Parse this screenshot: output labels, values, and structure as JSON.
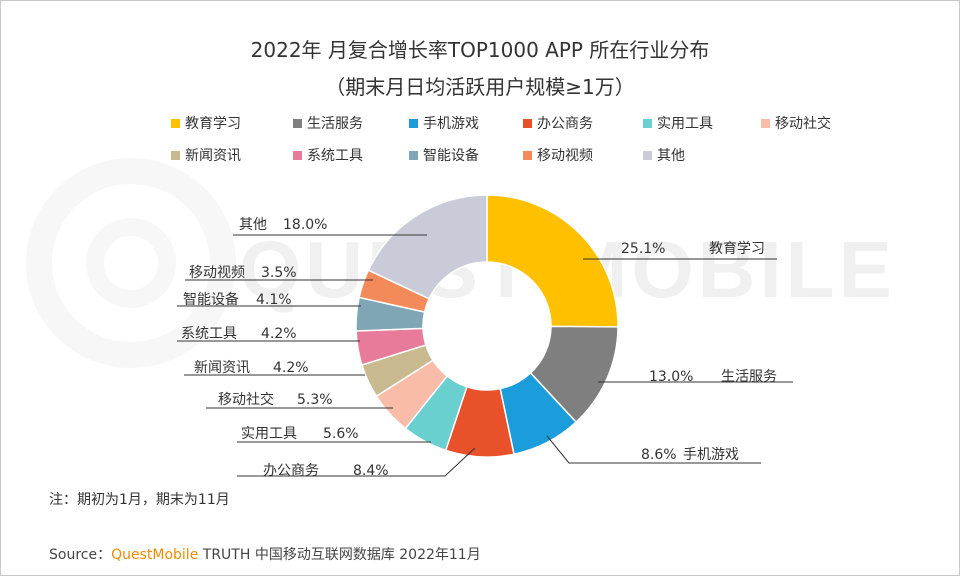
{
  "title_line1": "2022年 月复合增长率TOP1000 APP 所在行业分布",
  "title_line2": "（期末月日均活跃用户规模≥1万）",
  "note": "注：期初为1月，期末为11月",
  "source": {
    "label": "Source：",
    "brand": "QuestMobile",
    "rest": " TRUTH 中国移动互联网数据库 2022年11月"
  },
  "watermark_text": "QUEST MOBILE",
  "chart_data": {
    "type": "pie",
    "subtype": "donut",
    "title": "2022年 月复合增长率TOP1000 APP 所在行业分布（期末月日均活跃用户规模≥1万）",
    "unit": "%",
    "legend_position": "top",
    "slices": [
      {
        "label": "教育学习",
        "value": 25.1,
        "value_text": "25.1%",
        "color": "#FFC000"
      },
      {
        "label": "生活服务",
        "value": 13.0,
        "value_text": "13.0%",
        "color": "#7F7F7F"
      },
      {
        "label": "手机游戏",
        "value": 8.6,
        "value_text": "8.6%",
        "color": "#1B9DDC"
      },
      {
        "label": "办公商务",
        "value": 8.4,
        "value_text": "8.4%",
        "color": "#E8512A"
      },
      {
        "label": "实用工具",
        "value": 5.6,
        "value_text": "5.6%",
        "color": "#6ACFCF"
      },
      {
        "label": "移动社交",
        "value": 5.3,
        "value_text": "5.3%",
        "color": "#F8BCA8"
      },
      {
        "label": "新闻资讯",
        "value": 4.2,
        "value_text": "4.2%",
        "color": "#C8B98E"
      },
      {
        "label": "系统工具",
        "value": 4.2,
        "value_text": "4.2%",
        "color": "#E87A9A"
      },
      {
        "label": "智能设备",
        "value": 4.1,
        "value_text": "4.1%",
        "color": "#80A6B5"
      },
      {
        "label": "移动视频",
        "value": 3.5,
        "value_text": "3.5%",
        "color": "#F48A5A"
      },
      {
        "label": "其他",
        "value": 18.0,
        "value_text": "18.0%",
        "color": "#C9CCD8"
      }
    ]
  }
}
